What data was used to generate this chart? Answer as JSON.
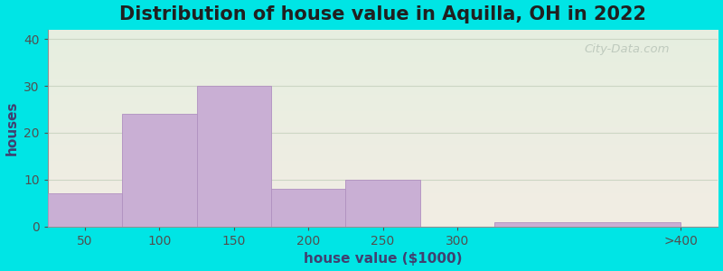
{
  "title": "Distribution of house value in Aquilla, OH in 2022",
  "xlabel": "house value ($1000)",
  "ylabel": "houses",
  "bin_edges": [
    25,
    75,
    125,
    175,
    225,
    275,
    325,
    450
  ],
  "tick_positions": [
    50,
    100,
    150,
    200,
    250,
    300,
    450
  ],
  "tick_labels": [
    "50",
    "100",
    "150",
    "200",
    "250",
    "300",
    ">400"
  ],
  "bar_heights": [
    7,
    24,
    30,
    8,
    10,
    0,
    1
  ],
  "bar_color": "#c9afd4",
  "bar_edge_color": "#b090c0",
  "yticks": [
    0,
    10,
    20,
    30,
    40
  ],
  "ylim": [
    0,
    42
  ],
  "xlim": [
    25,
    475
  ],
  "background_outer": "#00e5e5",
  "background_inner_top": "#e6efe0",
  "background_inner_bottom": "#f2ede4",
  "grid_color": "#ccd6c4",
  "title_fontsize": 15,
  "axis_label_fontsize": 11,
  "tick_fontsize": 10,
  "watermark_text": "City-Data.com",
  "watermark_color": "#b8c4b8",
  "title_color": "#202020",
  "label_color": "#404070",
  "tick_color": "#505050"
}
